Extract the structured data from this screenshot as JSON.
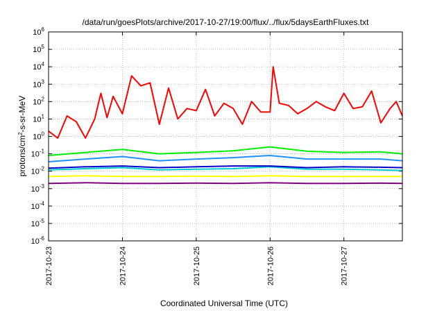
{
  "chart_data": {
    "type": "line",
    "title": "/data/run/goesPlots/archive/2017-10-27/19:00/flux/../flux/5daysEarthFluxes.txt",
    "xlabel": "Coordinated Universal Time (UTC)",
    "ylabel": {
      "base": "protons/cm",
      "sup": "2",
      "rest": "-s-sr-MeV"
    },
    "y_scale": "log",
    "ylim_exp": [
      -6,
      6
    ],
    "y_ticks": [
      {
        "exp": -6,
        "label_base": "10",
        "label_exp": "-6"
      },
      {
        "exp": -5,
        "label_base": "10",
        "label_exp": "-5"
      },
      {
        "exp": -4,
        "label_base": "10",
        "label_exp": "-4"
      },
      {
        "exp": -3,
        "label_base": "10",
        "label_exp": "-3"
      },
      {
        "exp": -2,
        "label_base": "10",
        "label_exp": "-2"
      },
      {
        "exp": -1,
        "label_base": "10",
        "label_exp": "-1"
      },
      {
        "exp": 0,
        "label_base": "10",
        "label_exp": "0"
      },
      {
        "exp": 1,
        "label_base": "10",
        "label_exp": "1"
      },
      {
        "exp": 2,
        "label_base": "10",
        "label_exp": "2"
      },
      {
        "exp": 3,
        "label_base": "10",
        "label_exp": "3"
      },
      {
        "exp": 4,
        "label_base": "10",
        "label_exp": "4"
      },
      {
        "exp": 5,
        "label_base": "10",
        "label_exp": "5"
      },
      {
        "exp": 6,
        "label_base": "10",
        "label_exp": "6"
      }
    ],
    "x_ticks": [
      "2017-10-23",
      "2017-10-24",
      "2017-10-25",
      "2017-10-26",
      "2017-10-27"
    ],
    "x_range": [
      "2017-10-23 00:00",
      "2017-10-27 19:00"
    ],
    "grid": true,
    "series": [
      {
        "color": "#ff0000",
        "x": [
          "2017-10-23 00:00",
          "2017-10-23 03:00",
          "2017-10-23 06:00",
          "2017-10-23 09:00",
          "2017-10-23 12:00",
          "2017-10-23 15:00",
          "2017-10-23 17:00",
          "2017-10-23 19:00",
          "2017-10-23 21:00",
          "2017-10-24 00:00",
          "2017-10-24 03:00",
          "2017-10-24 06:00",
          "2017-10-24 09:00",
          "2017-10-24 12:00",
          "2017-10-24 15:00",
          "2017-10-24 18:00",
          "2017-10-24 21:00",
          "2017-10-25 00:00",
          "2017-10-25 03:00",
          "2017-10-25 06:00",
          "2017-10-25 09:00",
          "2017-10-25 12:00",
          "2017-10-25 15:00",
          "2017-10-25 18:00",
          "2017-10-25 21:00",
          "2017-10-26 00:00",
          "2017-10-26 01:00",
          "2017-10-26 03:00",
          "2017-10-26 06:00",
          "2017-10-26 09:00",
          "2017-10-26 12:00",
          "2017-10-26 15:00",
          "2017-10-26 18:00",
          "2017-10-26 21:00",
          "2017-10-27 00:00",
          "2017-10-27 03:00",
          "2017-10-27 06:00",
          "2017-10-27 09:00",
          "2017-10-27 12:00",
          "2017-10-27 15:00",
          "2017-10-27 17:00",
          "2017-10-27 19:00"
        ],
        "y": [
          2,
          0.8,
          15,
          7,
          0.8,
          10,
          300,
          12,
          200,
          20,
          3000,
          800,
          1200,
          5,
          600,
          10,
          40,
          30,
          500,
          15,
          80,
          40,
          5,
          100,
          25,
          25,
          10000,
          80,
          60,
          20,
          40,
          100,
          50,
          30,
          300,
          40,
          50,
          400,
          6,
          40,
          100,
          15
        ]
      },
      {
        "color": "#00ee00",
        "x": [
          "2017-10-23 00:00",
          "2017-10-23 12:00",
          "2017-10-24 00:00",
          "2017-10-24 12:00",
          "2017-10-25 00:00",
          "2017-10-25 12:00",
          "2017-10-26 00:00",
          "2017-10-26 12:00",
          "2017-10-27 00:00",
          "2017-10-27 12:00",
          "2017-10-27 19:00"
        ],
        "y": [
          0.08,
          0.12,
          0.18,
          0.1,
          0.12,
          0.15,
          0.25,
          0.14,
          0.12,
          0.13,
          0.1
        ]
      },
      {
        "color": "#1e90ff",
        "x": [
          "2017-10-23 00:00",
          "2017-10-23 12:00",
          "2017-10-24 00:00",
          "2017-10-24 12:00",
          "2017-10-25 00:00",
          "2017-10-25 12:00",
          "2017-10-26 00:00",
          "2017-10-26 12:00",
          "2017-10-27 00:00",
          "2017-10-27 12:00",
          "2017-10-27 19:00"
        ],
        "y": [
          0.035,
          0.05,
          0.07,
          0.04,
          0.05,
          0.06,
          0.08,
          0.05,
          0.05,
          0.05,
          0.04
        ]
      },
      {
        "color": "#00cccc",
        "x": [
          "2017-10-23 00:00",
          "2017-10-23 12:00",
          "2017-10-24 00:00",
          "2017-10-24 12:00",
          "2017-10-25 00:00",
          "2017-10-25 12:00",
          "2017-10-26 00:00",
          "2017-10-26 12:00",
          "2017-10-27 00:00",
          "2017-10-27 12:00",
          "2017-10-27 19:00"
        ],
        "y": [
          0.012,
          0.014,
          0.016,
          0.012,
          0.013,
          0.014,
          0.018,
          0.013,
          0.013,
          0.012,
          0.011
        ]
      },
      {
        "color": "#0000cc",
        "x": [
          "2017-10-23 00:00",
          "2017-10-23 12:00",
          "2017-10-24 00:00",
          "2017-10-24 12:00",
          "2017-10-25 00:00",
          "2017-10-25 12:00",
          "2017-10-26 00:00",
          "2017-10-26 12:00",
          "2017-10-27 00:00",
          "2017-10-27 12:00",
          "2017-10-27 19:00"
        ],
        "y": [
          0.015,
          0.018,
          0.02,
          0.016,
          0.018,
          0.02,
          0.02,
          0.016,
          0.018,
          0.017,
          0.016
        ]
      },
      {
        "color": "#ffff00",
        "x": [
          "2017-10-23 00:00",
          "2017-10-23 12:00",
          "2017-10-24 00:00",
          "2017-10-24 12:00",
          "2017-10-25 00:00",
          "2017-10-25 12:00",
          "2017-10-26 00:00",
          "2017-10-26 12:00",
          "2017-10-27 00:00",
          "2017-10-27 12:00",
          "2017-10-27 19:00"
        ],
        "y": [
          0.005,
          0.0055,
          0.005,
          0.005,
          0.0052,
          0.005,
          0.0055,
          0.005,
          0.005,
          0.005,
          0.005
        ]
      },
      {
        "color": "#800080",
        "x": [
          "2017-10-23 00:00",
          "2017-10-23 12:00",
          "2017-10-24 00:00",
          "2017-10-24 12:00",
          "2017-10-25 00:00",
          "2017-10-25 12:00",
          "2017-10-26 00:00",
          "2017-10-26 12:00",
          "2017-10-27 00:00",
          "2017-10-27 12:00",
          "2017-10-27 19:00"
        ],
        "y": [
          0.002,
          0.0022,
          0.002,
          0.002,
          0.0021,
          0.002,
          0.0022,
          0.002,
          0.002,
          0.0021,
          0.002
        ]
      }
    ]
  }
}
